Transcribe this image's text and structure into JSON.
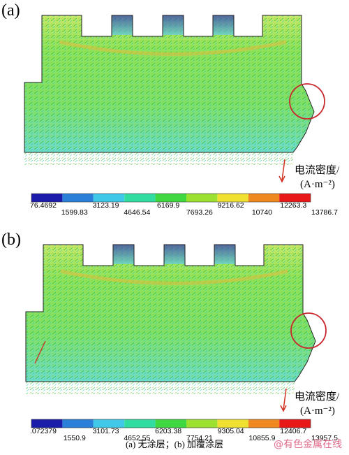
{
  "panels": [
    {
      "label": "(a)",
      "colorbar": {
        "labels": [
          "76.4692",
          "1599.83",
          "3123.19",
          "4646.54",
          "6169.9",
          "7693.26",
          "9216.62",
          "10740",
          "12263.3",
          "13786.7"
        ]
      },
      "unit": {
        "line1": "电流密度/",
        "line2": "(A·m⁻²)"
      }
    },
    {
      "label": "(b)",
      "colorbar": {
        "labels": [
          ".072379",
          "1550.9",
          "3101.73",
          "4652.55",
          "6203.38",
          "7754.21",
          "9305.04",
          "10855.9",
          "12406.7",
          "13957.5"
        ]
      },
      "unit": {
        "line1": "电流密度/",
        "line2": "(A·m⁻²)"
      }
    }
  ],
  "caption": "(a) 无涂层；(b) 加覆涂层",
  "watermark": "@有色金属在线"
}
